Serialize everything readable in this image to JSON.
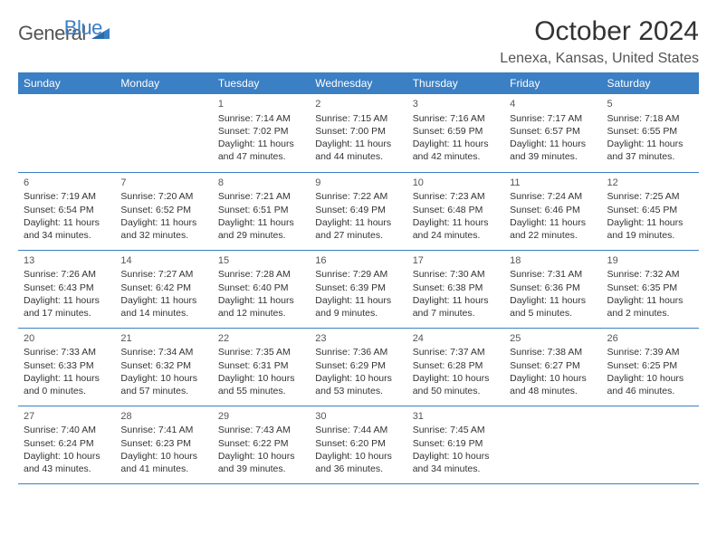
{
  "brand": {
    "word1": "General",
    "word2": "Blue",
    "word1_color": "#555555",
    "word2_color": "#3b7fc4",
    "shape_color": "#3b7fc4"
  },
  "header": {
    "title": "October 2024",
    "location": "Lenexa, Kansas, United States"
  },
  "style": {
    "header_bg": "#3b7fc4",
    "header_text": "#ffffff",
    "border_color": "#3b7fc4",
    "body_text": "#333333",
    "background": "#ffffff",
    "font_family": "Arial",
    "title_fontsize": 30,
    "location_fontsize": 16,
    "dayhead_fontsize": 12,
    "cell_fontsize": 10.5
  },
  "calendar": {
    "type": "table",
    "columns": [
      "Sunday",
      "Monday",
      "Tuesday",
      "Wednesday",
      "Thursday",
      "Friday",
      "Saturday"
    ],
    "weeks": [
      [
        null,
        null,
        {
          "day": "1",
          "sunrise": "Sunrise: 7:14 AM",
          "sunset": "Sunset: 7:02 PM",
          "day1": "Daylight: 11 hours",
          "day2": "and 47 minutes."
        },
        {
          "day": "2",
          "sunrise": "Sunrise: 7:15 AM",
          "sunset": "Sunset: 7:00 PM",
          "day1": "Daylight: 11 hours",
          "day2": "and 44 minutes."
        },
        {
          "day": "3",
          "sunrise": "Sunrise: 7:16 AM",
          "sunset": "Sunset: 6:59 PM",
          "day1": "Daylight: 11 hours",
          "day2": "and 42 minutes."
        },
        {
          "day": "4",
          "sunrise": "Sunrise: 7:17 AM",
          "sunset": "Sunset: 6:57 PM",
          "day1": "Daylight: 11 hours",
          "day2": "and 39 minutes."
        },
        {
          "day": "5",
          "sunrise": "Sunrise: 7:18 AM",
          "sunset": "Sunset: 6:55 PM",
          "day1": "Daylight: 11 hours",
          "day2": "and 37 minutes."
        }
      ],
      [
        {
          "day": "6",
          "sunrise": "Sunrise: 7:19 AM",
          "sunset": "Sunset: 6:54 PM",
          "day1": "Daylight: 11 hours",
          "day2": "and 34 minutes."
        },
        {
          "day": "7",
          "sunrise": "Sunrise: 7:20 AM",
          "sunset": "Sunset: 6:52 PM",
          "day1": "Daylight: 11 hours",
          "day2": "and 32 minutes."
        },
        {
          "day": "8",
          "sunrise": "Sunrise: 7:21 AM",
          "sunset": "Sunset: 6:51 PM",
          "day1": "Daylight: 11 hours",
          "day2": "and 29 minutes."
        },
        {
          "day": "9",
          "sunrise": "Sunrise: 7:22 AM",
          "sunset": "Sunset: 6:49 PM",
          "day1": "Daylight: 11 hours",
          "day2": "and 27 minutes."
        },
        {
          "day": "10",
          "sunrise": "Sunrise: 7:23 AM",
          "sunset": "Sunset: 6:48 PM",
          "day1": "Daylight: 11 hours",
          "day2": "and 24 minutes."
        },
        {
          "day": "11",
          "sunrise": "Sunrise: 7:24 AM",
          "sunset": "Sunset: 6:46 PM",
          "day1": "Daylight: 11 hours",
          "day2": "and 22 minutes."
        },
        {
          "day": "12",
          "sunrise": "Sunrise: 7:25 AM",
          "sunset": "Sunset: 6:45 PM",
          "day1": "Daylight: 11 hours",
          "day2": "and 19 minutes."
        }
      ],
      [
        {
          "day": "13",
          "sunrise": "Sunrise: 7:26 AM",
          "sunset": "Sunset: 6:43 PM",
          "day1": "Daylight: 11 hours",
          "day2": "and 17 minutes."
        },
        {
          "day": "14",
          "sunrise": "Sunrise: 7:27 AM",
          "sunset": "Sunset: 6:42 PM",
          "day1": "Daylight: 11 hours",
          "day2": "and 14 minutes."
        },
        {
          "day": "15",
          "sunrise": "Sunrise: 7:28 AM",
          "sunset": "Sunset: 6:40 PM",
          "day1": "Daylight: 11 hours",
          "day2": "and 12 minutes."
        },
        {
          "day": "16",
          "sunrise": "Sunrise: 7:29 AM",
          "sunset": "Sunset: 6:39 PM",
          "day1": "Daylight: 11 hours",
          "day2": "and 9 minutes."
        },
        {
          "day": "17",
          "sunrise": "Sunrise: 7:30 AM",
          "sunset": "Sunset: 6:38 PM",
          "day1": "Daylight: 11 hours",
          "day2": "and 7 minutes."
        },
        {
          "day": "18",
          "sunrise": "Sunrise: 7:31 AM",
          "sunset": "Sunset: 6:36 PM",
          "day1": "Daylight: 11 hours",
          "day2": "and 5 minutes."
        },
        {
          "day": "19",
          "sunrise": "Sunrise: 7:32 AM",
          "sunset": "Sunset: 6:35 PM",
          "day1": "Daylight: 11 hours",
          "day2": "and 2 minutes."
        }
      ],
      [
        {
          "day": "20",
          "sunrise": "Sunrise: 7:33 AM",
          "sunset": "Sunset: 6:33 PM",
          "day1": "Daylight: 11 hours",
          "day2": "and 0 minutes."
        },
        {
          "day": "21",
          "sunrise": "Sunrise: 7:34 AM",
          "sunset": "Sunset: 6:32 PM",
          "day1": "Daylight: 10 hours",
          "day2": "and 57 minutes."
        },
        {
          "day": "22",
          "sunrise": "Sunrise: 7:35 AM",
          "sunset": "Sunset: 6:31 PM",
          "day1": "Daylight: 10 hours",
          "day2": "and 55 minutes."
        },
        {
          "day": "23",
          "sunrise": "Sunrise: 7:36 AM",
          "sunset": "Sunset: 6:29 PM",
          "day1": "Daylight: 10 hours",
          "day2": "and 53 minutes."
        },
        {
          "day": "24",
          "sunrise": "Sunrise: 7:37 AM",
          "sunset": "Sunset: 6:28 PM",
          "day1": "Daylight: 10 hours",
          "day2": "and 50 minutes."
        },
        {
          "day": "25",
          "sunrise": "Sunrise: 7:38 AM",
          "sunset": "Sunset: 6:27 PM",
          "day1": "Daylight: 10 hours",
          "day2": "and 48 minutes."
        },
        {
          "day": "26",
          "sunrise": "Sunrise: 7:39 AM",
          "sunset": "Sunset: 6:25 PM",
          "day1": "Daylight: 10 hours",
          "day2": "and 46 minutes."
        }
      ],
      [
        {
          "day": "27",
          "sunrise": "Sunrise: 7:40 AM",
          "sunset": "Sunset: 6:24 PM",
          "day1": "Daylight: 10 hours",
          "day2": "and 43 minutes."
        },
        {
          "day": "28",
          "sunrise": "Sunrise: 7:41 AM",
          "sunset": "Sunset: 6:23 PM",
          "day1": "Daylight: 10 hours",
          "day2": "and 41 minutes."
        },
        {
          "day": "29",
          "sunrise": "Sunrise: 7:43 AM",
          "sunset": "Sunset: 6:22 PM",
          "day1": "Daylight: 10 hours",
          "day2": "and 39 minutes."
        },
        {
          "day": "30",
          "sunrise": "Sunrise: 7:44 AM",
          "sunset": "Sunset: 6:20 PM",
          "day1": "Daylight: 10 hours",
          "day2": "and 36 minutes."
        },
        {
          "day": "31",
          "sunrise": "Sunrise: 7:45 AM",
          "sunset": "Sunset: 6:19 PM",
          "day1": "Daylight: 10 hours",
          "day2": "and 34 minutes."
        },
        null,
        null
      ]
    ]
  }
}
